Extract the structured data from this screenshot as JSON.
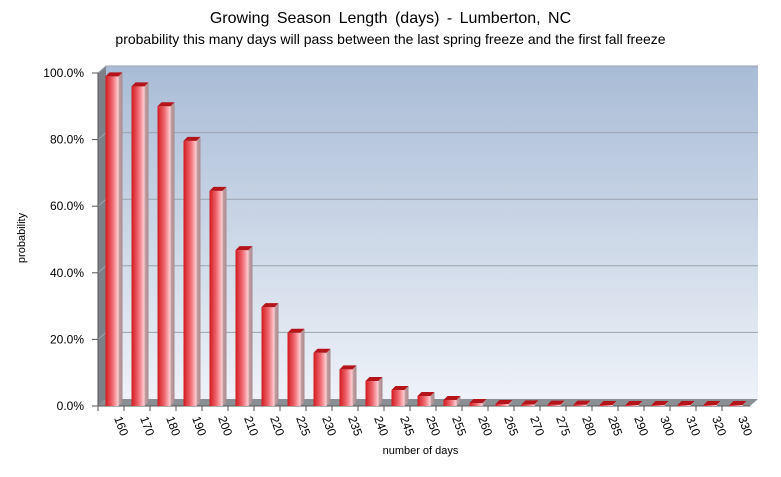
{
  "chart_data": {
    "type": "bar",
    "title": "Growing Season Length (days) - Lumberton, NC",
    "subtitle": "probability this many days will pass between the last spring freeze and the first fall freeze",
    "xlabel": "number of days",
    "ylabel": "probability",
    "categories": [
      "160",
      "170",
      "180",
      "190",
      "200",
      "210",
      "220",
      "225",
      "230",
      "235",
      "240",
      "245",
      "250",
      "255",
      "260",
      "265",
      "270",
      "275",
      "280",
      "285",
      "290",
      "300",
      "310",
      "320",
      "330"
    ],
    "values": [
      99.0,
      96.0,
      90.0,
      79.6,
      64.6,
      46.8,
      29.7,
      22.0,
      16.0,
      11.0,
      7.5,
      4.8,
      3.0,
      1.8,
      0.9,
      0.6,
      0.5,
      0.4,
      0.4,
      0.3,
      0.3,
      0.3,
      0.3,
      0.3,
      0.3
    ],
    "yticks": [
      "0.0%",
      "20.0%",
      "40.0%",
      "60.0%",
      "80.0%",
      "100.0%"
    ],
    "ylim": [
      0,
      100
    ],
    "grid": true,
    "colors": {
      "bar_dark": "#d11a1f",
      "bar_light": "#ffd5d9",
      "plot_top": "#a9bcd6",
      "plot_bottom": "#eef2f8",
      "gridline": "#9aa3ad",
      "floor": "#8a8f94"
    }
  }
}
